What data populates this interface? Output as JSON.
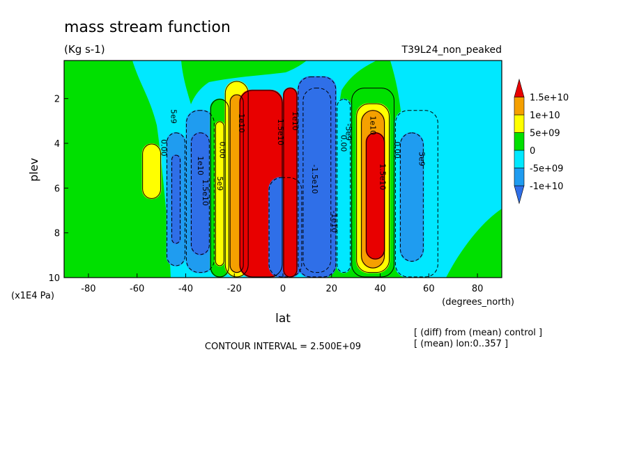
{
  "chart_data": {
    "type": "heatmap",
    "title": "mass stream function",
    "units": "(Kg s-1)",
    "run_label": "T39L24_non_peaked",
    "xlabel": "lat",
    "x_units": "(degrees_north)",
    "ylabel": "plev",
    "y_units": "(x1E4 Pa)",
    "xlim": [
      -90,
      90
    ],
    "ylim": [
      10,
      0.3
    ],
    "x_ticks": [
      "-80",
      "-60",
      "-40",
      "-20",
      "0",
      "20",
      "40",
      "60",
      "80"
    ],
    "y_ticks": [
      "2",
      "4",
      "6",
      "8",
      "10"
    ],
    "colorbar": {
      "labels": [
        "1.5e+10",
        "1e+10",
        "5e+09",
        "0",
        "-5e+09",
        "-1e+10"
      ],
      "colors": [
        "#2f6fe8",
        "#1f9cf0",
        "#00e8ff",
        "#00e000",
        "#ffff00",
        "#f5a000",
        "#e80000"
      ]
    },
    "contour_labels": [
      "0.00",
      "5e9",
      "1e10",
      "1.5e10",
      "-1.5e10",
      "-1e10",
      "-5e9"
    ],
    "contour_interval_text": "CONTOUR INTERVAL = 2.500E+09",
    "notes": [
      "[ (diff) from (mean) control ]",
      "[ (mean) lon:0..357 ]"
    ],
    "cells": [
      {
        "lat": [
          -48,
          -40
        ],
        "plev": [
          3.5,
          9.5
        ],
        "value": -7000000000.0
      },
      {
        "lat": [
          -46,
          -42
        ],
        "plev": [
          4.5,
          8.5
        ],
        "value": -12000000000.0
      },
      {
        "lat": [
          -40,
          -28
        ],
        "plev": [
          2.5,
          9.8
        ],
        "value": -7000000000.0
      },
      {
        "lat": [
          -38,
          -30
        ],
        "plev": [
          3.5,
          9.0
        ],
        "value": -12000000000.0
      },
      {
        "lat": [
          -30,
          -22
        ],
        "plev": [
          2.0,
          10.0
        ],
        "value": 3000000000.0
      },
      {
        "lat": [
          -28,
          -24
        ],
        "plev": [
          3.0,
          9.5
        ],
        "value": 7000000000.0
      },
      {
        "lat": [
          -24,
          -14
        ],
        "plev": [
          1.2,
          10.0
        ],
        "value": 7000000000.0
      },
      {
        "lat": [
          -22,
          -16
        ],
        "plev": [
          1.8,
          9.8
        ],
        "value": 12000000000.0
      },
      {
        "lat": [
          -18,
          0
        ],
        "plev": [
          1.6,
          10.0
        ],
        "value": 16000000000.0
      },
      {
        "lat": [
          -6,
          8
        ],
        "plev": [
          5.5,
          10.0
        ],
        "value": -16000000000.0
      },
      {
        "lat": [
          0,
          6
        ],
        "plev": [
          1.5,
          10.0
        ],
        "value": 16000000000.0
      },
      {
        "lat": [
          6,
          22
        ],
        "plev": [
          1.0,
          10.0
        ],
        "value": -12000000000.0
      },
      {
        "lat": [
          8,
          20
        ],
        "plev": [
          1.5,
          9.8
        ],
        "value": -16000000000.0
      },
      {
        "lat": [
          22,
          28
        ],
        "plev": [
          2.0,
          9.8
        ],
        "value": -3000000000.0
      },
      {
        "lat": [
          28,
          46
        ],
        "plev": [
          1.5,
          10.0
        ],
        "value": 3000000000.0
      },
      {
        "lat": [
          30,
          44
        ],
        "plev": [
          2.2,
          9.8
        ],
        "value": 7000000000.0
      },
      {
        "lat": [
          32,
          42
        ],
        "plev": [
          2.5,
          9.6
        ],
        "value": 12000000000.0
      },
      {
        "lat": [
          34,
          42
        ],
        "plev": [
          3.5,
          9.2
        ],
        "value": 16000000000.0
      },
      {
        "lat": [
          46,
          64
        ],
        "plev": [
          2.5,
          10.0
        ],
        "value": -3000000000.0
      },
      {
        "lat": [
          48,
          58
        ],
        "plev": [
          3.5,
          9.3
        ],
        "value": -7000000000.0
      },
      {
        "lat": [
          -58,
          -50
        ],
        "plev": [
          4.0,
          6.5
        ],
        "value": 7000000000.0
      }
    ]
  }
}
